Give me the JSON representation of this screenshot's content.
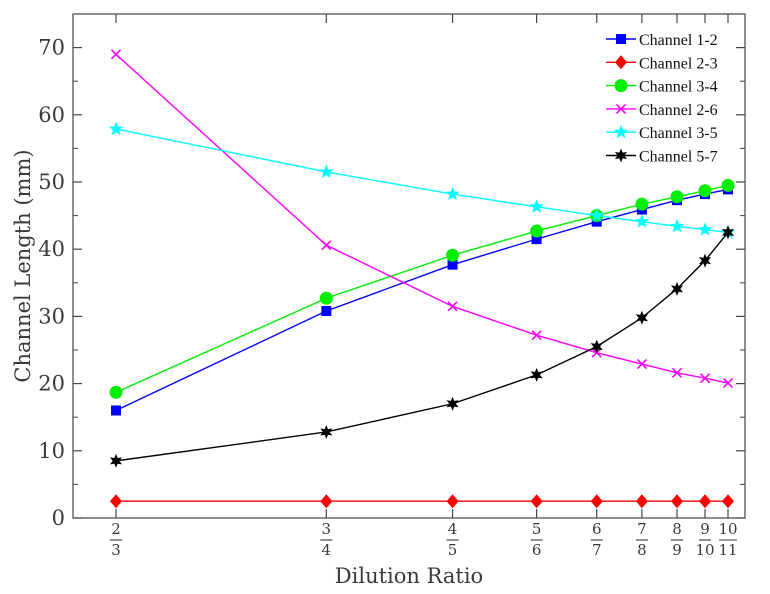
{
  "chart_data": {
    "type": "line",
    "title": "",
    "xlabel": "Dilution Ratio",
    "ylabel": "Channel Length (mm)",
    "ylim": [
      0,
      75
    ],
    "yticks": [
      0,
      10,
      20,
      30,
      40,
      50,
      60,
      70
    ],
    "x": [
      0.6667,
      0.75,
      0.8,
      0.8333,
      0.8571,
      0.875,
      0.8889,
      0.9,
      0.9091
    ],
    "x_tick_labels": [
      {
        "num": "2",
        "den": "3"
      },
      {
        "num": "3",
        "den": "4"
      },
      {
        "num": "4",
        "den": "5"
      },
      {
        "num": "5",
        "den": "6"
      },
      {
        "num": "6",
        "den": "7"
      },
      {
        "num": "7",
        "den": "8"
      },
      {
        "num": "8",
        "den": "9"
      },
      {
        "num": "9",
        "den": "10"
      },
      {
        "num": "10",
        "den": "11"
      }
    ],
    "legend_position": "top-right",
    "series": [
      {
        "name": "Channel 1-2",
        "color": "#0000ff",
        "marker": "square",
        "values": [
          16.0,
          30.8,
          37.7,
          41.5,
          44.1,
          45.9,
          47.3,
          48.2,
          48.9
        ]
      },
      {
        "name": "Channel 2-3",
        "color": "#ff0000",
        "marker": "diamond",
        "values": [
          2.5,
          2.5,
          2.5,
          2.5,
          2.5,
          2.5,
          2.5,
          2.5,
          2.5
        ]
      },
      {
        "name": "Channel 3-4",
        "color": "#00ee00",
        "marker": "circle",
        "values": [
          18.7,
          32.7,
          39.1,
          42.7,
          45.0,
          46.7,
          47.8,
          48.7,
          49.5
        ]
      },
      {
        "name": "Channel 2-6",
        "color": "#ff00ff",
        "marker": "x",
        "values": [
          69.0,
          40.6,
          31.5,
          27.2,
          24.6,
          22.9,
          21.6,
          20.8,
          20.1
        ]
      },
      {
        "name": "Channel 3-5",
        "color": "#00ffff",
        "marker": "star",
        "values": [
          57.9,
          51.5,
          48.2,
          46.3,
          45.0,
          44.1,
          43.4,
          42.9,
          42.5
        ]
      },
      {
        "name": "Channel 5-7",
        "color": "#000000",
        "marker": "hexstar",
        "values": [
          8.5,
          12.8,
          17.0,
          21.3,
          25.5,
          29.8,
          34.1,
          38.3,
          42.5
        ]
      }
    ]
  }
}
